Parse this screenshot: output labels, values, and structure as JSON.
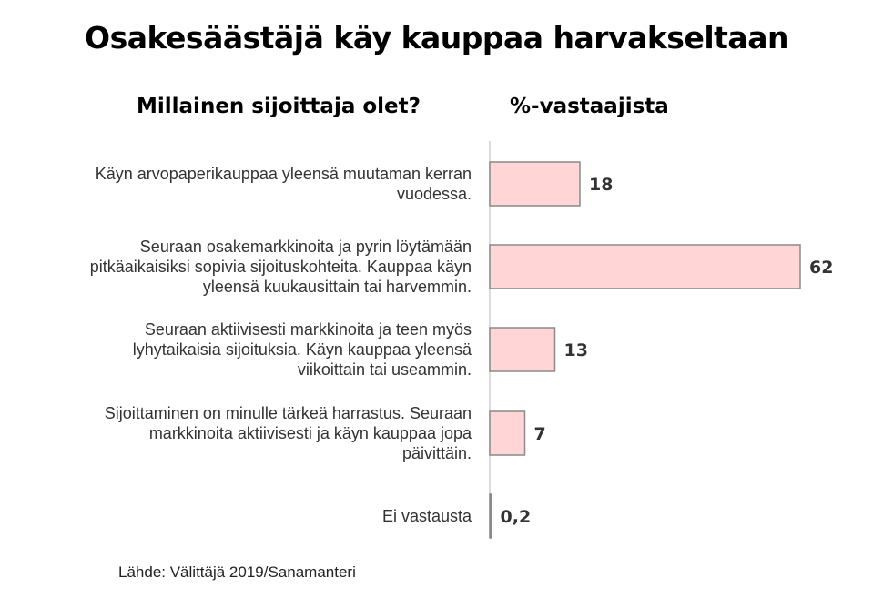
{
  "header": {
    "title": "Osakesäästäjä käy kauppaa harvakseltaan",
    "left_heading": "Millainen sijoittaja olet?",
    "right_heading": "%-vastaajista"
  },
  "source": "Lähde:  Välittäjä 2019/Sanamanteri",
  "chart_data": {
    "type": "bar",
    "orientation": "horizontal",
    "categories": [
      [
        "Käyn arvopaperikauppaa yleensä muutaman kerran",
        "vuodessa."
      ],
      [
        "Seuraan osakemarkkinoita ja pyrin löytämään",
        "pitkäaikaisiksi sopivia sijoituskohteita. Kauppaa käyn",
        "yleensä kuukausittain tai harvemmin."
      ],
      [
        "Seuraan aktiivisesti markkinoita ja teen myös",
        "lyhytaikaisia sijoituksia. Käyn kauppaa yleensä",
        "viikoittain tai useammin."
      ],
      [
        "Sijoittaminen on minulle tärkeä harrastus. Seuraan",
        "markkinoita aktiivisesti ja käyn kauppaa jopa",
        "päivittäin."
      ],
      [
        "Ei vastausta"
      ]
    ],
    "values": [
      18,
      62,
      13,
      7,
      0.2
    ],
    "value_labels": [
      "18",
      "62",
      "13",
      "7",
      "0,2"
    ],
    "bar_color": "#ffd5d5",
    "bar_border": "#8a8a8a",
    "axis_color": "#d0d0d0"
  }
}
